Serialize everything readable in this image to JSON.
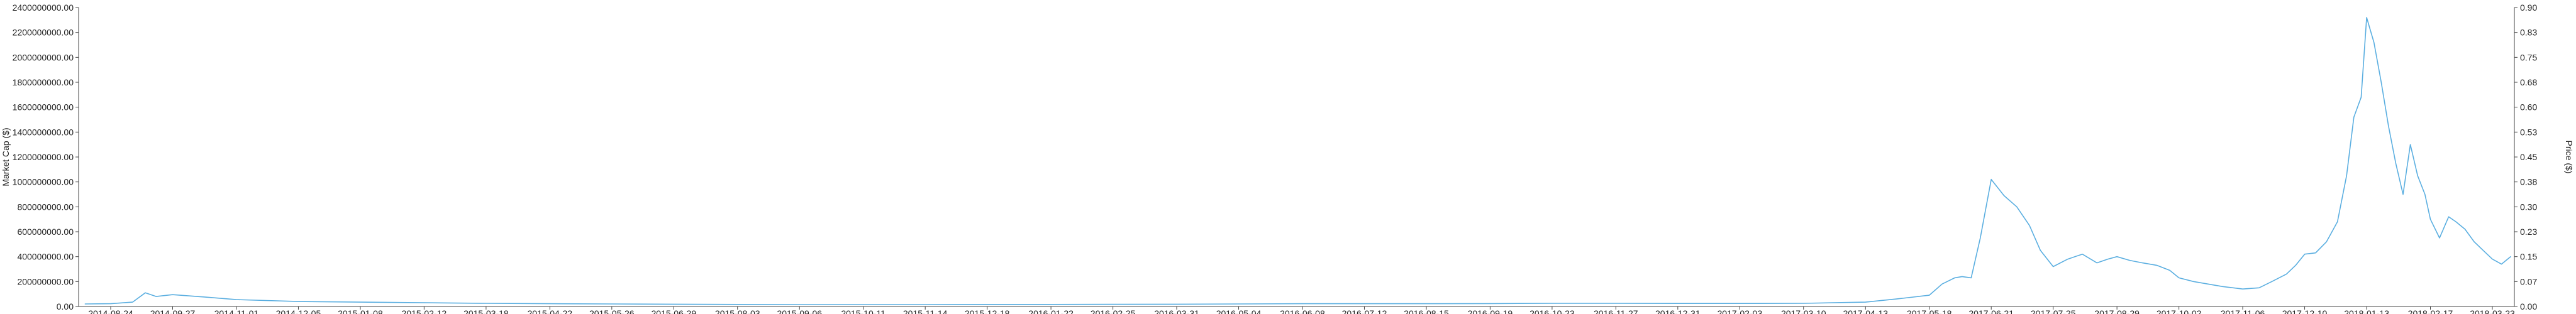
{
  "chart_data": {
    "type": "line",
    "title": "",
    "xlabel": "",
    "ylabel_left": "Market Cap ($)",
    "ylabel_right": "Price ($)",
    "grid": false,
    "colors": {
      "line": "#5aaee0",
      "axis": "#444444",
      "text": "#222222"
    },
    "x_tick_labels": [
      "2014-08-24",
      "2014-09-27",
      "2014-11-01",
      "2014-12-05",
      "2015-01-08",
      "2015-02-12",
      "2015-03-18",
      "2015-04-22",
      "2015-05-26",
      "2015-06-29",
      "2015-08-03",
      "2015-09-06",
      "2015-10-11",
      "2015-11-14",
      "2015-12-18",
      "2016-01-22",
      "2016-02-25",
      "2016-03-31",
      "2016-05-04",
      "2016-06-08",
      "2016-07-12",
      "2016-08-15",
      "2016-09-19",
      "2016-10-23",
      "2016-11-27",
      "2016-12-31",
      "2017-02-03",
      "2017-03-10",
      "2017-04-13",
      "2017-05-18",
      "2017-06-21",
      "2017-07-25",
      "2017-08-29",
      "2017-10-02",
      "2017-11-06",
      "2017-12-10",
      "2018-01-13",
      "2018-02-17",
      "2018-03-23"
    ],
    "left_axis": {
      "ylim": [
        0,
        2400000000
      ],
      "ticks": [
        "0.00",
        "200000000.00",
        "400000000.00",
        "600000000.00",
        "800000000.00",
        "1000000000.00",
        "1200000000.00",
        "1400000000.00",
        "1600000000.00",
        "1800000000.00",
        "2000000000.00",
        "2200000000.00",
        "2400000000.00"
      ]
    },
    "right_axis": {
      "ylim": [
        0,
        0.9
      ],
      "ticks": [
        "0.00",
        "0.07",
        "0.15",
        "0.23",
        "0.30",
        "0.38",
        "0.45",
        "0.53",
        "0.60",
        "0.68",
        "0.75",
        "0.83",
        "0.90"
      ]
    },
    "series": [
      {
        "x": [
          "2014-08-10",
          "2014-08-24",
          "2014-09-05",
          "2014-09-12",
          "2014-09-18",
          "2014-09-27",
          "2014-10-15",
          "2014-11-01",
          "2014-12-05",
          "2015-01-08",
          "2015-02-12",
          "2015-03-18",
          "2015-04-22",
          "2015-05-26",
          "2015-06-29",
          "2015-08-03",
          "2015-09-06",
          "2015-10-11",
          "2015-11-14",
          "2015-12-18",
          "2016-01-22",
          "2016-02-25",
          "2016-03-31",
          "2016-05-04",
          "2016-06-08",
          "2016-07-12",
          "2016-08-15",
          "2016-09-19",
          "2016-10-23",
          "2016-11-27",
          "2016-12-31",
          "2017-02-03",
          "2017-03-10",
          "2017-04-13",
          "2017-04-30",
          "2017-05-18",
          "2017-05-25",
          "2017-06-01",
          "2017-06-05",
          "2017-06-10",
          "2017-06-15",
          "2017-06-21",
          "2017-06-28",
          "2017-07-05",
          "2017-07-12",
          "2017-07-18",
          "2017-07-25",
          "2017-08-02",
          "2017-08-10",
          "2017-08-18",
          "2017-08-24",
          "2017-08-29",
          "2017-09-05",
          "2017-09-12",
          "2017-09-20",
          "2017-09-27",
          "2017-10-02",
          "2017-10-10",
          "2017-10-18",
          "2017-10-26",
          "2017-11-06",
          "2017-11-15",
          "2017-11-22",
          "2017-11-30",
          "2017-12-05",
          "2017-12-10",
          "2017-12-16",
          "2017-12-22",
          "2017-12-28",
          "2018-01-02",
          "2018-01-06",
          "2018-01-10",
          "2018-01-13",
          "2018-01-17",
          "2018-01-21",
          "2018-01-25",
          "2018-01-29",
          "2018-02-02",
          "2018-02-06",
          "2018-02-10",
          "2018-02-14",
          "2018-02-17",
          "2018-02-22",
          "2018-02-27",
          "2018-03-03",
          "2018-03-08",
          "2018-03-13",
          "2018-03-18",
          "2018-03-23",
          "2018-03-28",
          "2018-04-02"
        ],
        "y": [
          20000000,
          22000000,
          35000000,
          110000000,
          80000000,
          95000000,
          75000000,
          55000000,
          40000000,
          35000000,
          30000000,
          25000000,
          22000000,
          20000000,
          18000000,
          16000000,
          15000000,
          15000000,
          15000000,
          16000000,
          16000000,
          17000000,
          18000000,
          20000000,
          22000000,
          22000000,
          22000000,
          23000000,
          25000000,
          25000000,
          24000000,
          24000000,
          25000000,
          35000000,
          60000000,
          90000000,
          180000000,
          230000000,
          240000000,
          230000000,
          550000000,
          1020000000,
          890000000,
          800000000,
          650000000,
          450000000,
          320000000,
          380000000,
          420000000,
          350000000,
          380000000,
          400000000,
          370000000,
          350000000,
          330000000,
          290000000,
          230000000,
          200000000,
          180000000,
          160000000,
          140000000,
          150000000,
          200000000,
          260000000,
          330000000,
          420000000,
          430000000,
          520000000,
          680000000,
          1050000000,
          1520000000,
          1680000000,
          2320000000,
          2120000000,
          1800000000,
          1450000000,
          1150000000,
          900000000,
          1300000000,
          1050000000,
          900000000,
          700000000,
          550000000,
          720000000,
          680000000,
          620000000,
          520000000,
          450000000,
          380000000,
          340000000,
          400000000
        ]
      }
    ]
  }
}
